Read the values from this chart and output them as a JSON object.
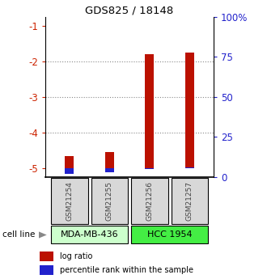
{
  "title": "GDS825 / 18148",
  "samples": [
    "GSM21254",
    "GSM21255",
    "GSM21256",
    "GSM21257"
  ],
  "log_ratio": [
    -4.65,
    -4.55,
    -1.8,
    -1.75
  ],
  "percentile_rank_pct": [
    2,
    3,
    5,
    6
  ],
  "ylim_left": [
    -5.25,
    -0.75
  ],
  "ylim_right": [
    0,
    100
  ],
  "left_ticks": [
    -5,
    -4,
    -3,
    -2,
    -1
  ],
  "right_ticks": [
    0,
    25,
    50,
    75,
    100
  ],
  "right_tick_labels": [
    "0",
    "25",
    "50",
    "75",
    "100%"
  ],
  "dotted_lines": [
    -2,
    -3,
    -4
  ],
  "bar_color_red": "#bb1100",
  "bar_color_blue": "#2222cc",
  "cell_lines": [
    {
      "label": "MDA-MB-436",
      "samples": [
        0,
        1
      ],
      "color": "#ccffcc"
    },
    {
      "label": "HCC 1954",
      "samples": [
        2,
        3
      ],
      "color": "#44ee44"
    }
  ],
  "sample_label_color": "#444444",
  "left_tick_color": "#cc2200",
  "right_tick_color": "#2222cc",
  "grid_color": "#888888",
  "bar_width": 0.22,
  "legend_red_label": "log ratio",
  "legend_blue_label": "percentile rank within the sample",
  "cell_line_label": "cell line",
  "bg_color": "#d8d8d8",
  "plot_bg_color": "#ffffff"
}
